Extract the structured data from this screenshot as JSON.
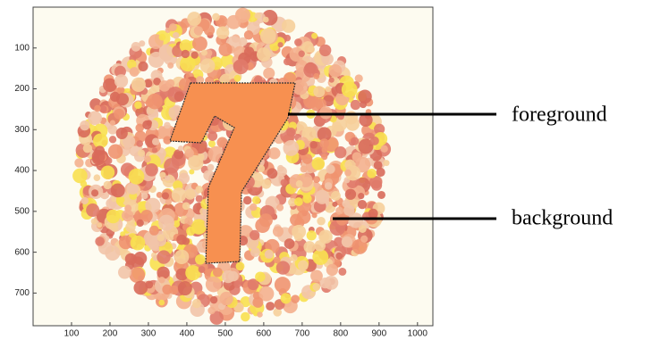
{
  "axes": {
    "xlim": [
      0,
      1040
    ],
    "ylim": [
      0,
      780
    ],
    "xticks": [
      100,
      200,
      300,
      400,
      500,
      600,
      700,
      800,
      900,
      1000
    ],
    "yticks": [
      100,
      200,
      300,
      400,
      500,
      600,
      700
    ]
  },
  "annotations": [
    {
      "text": "foreground"
    },
    {
      "text": "background"
    }
  ]
}
